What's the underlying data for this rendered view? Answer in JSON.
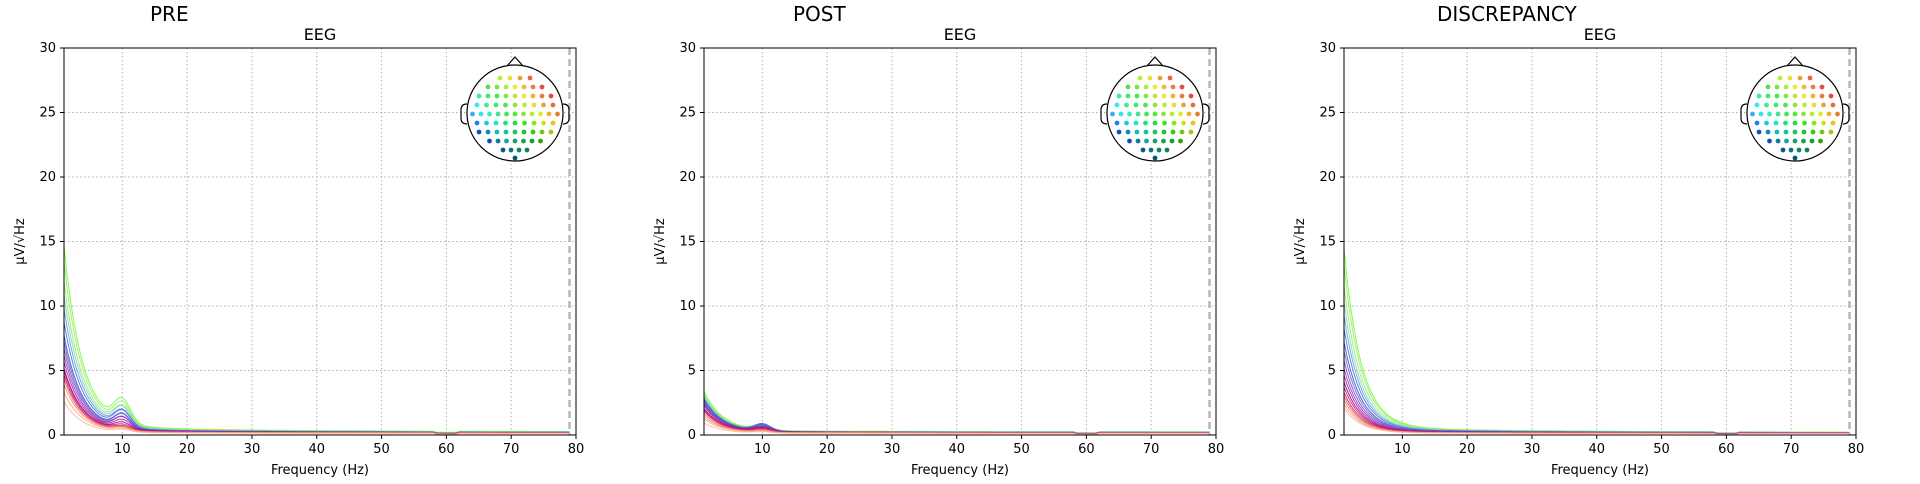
{
  "chart_data": [
    {
      "type": "line",
      "title": "PRE",
      "subtitle": "EEG",
      "xlabel": "Frequency (Hz)",
      "ylabel": "µV/√Hz",
      "xlim": [
        1,
        80
      ],
      "ylim": [
        0,
        30
      ],
      "xticks": [
        10,
        20,
        30,
        40,
        50,
        60,
        70,
        80
      ],
      "yticks": [
        0,
        5,
        10,
        15,
        20,
        25,
        30
      ],
      "grid": true,
      "vline_x": 79,
      "inset": "sensor topomap, top-right",
      "line_colors": [
        "#66ff33",
        "#8cf05a",
        "#a6e070",
        "#7ad6c0",
        "#5a9de0",
        "#4169e1",
        "#3050c0",
        "#6a5acd",
        "#7b3fbf",
        "#9932cc",
        "#a0208f",
        "#8b008b",
        "#c71585",
        "#dc143c",
        "#e06060",
        "#f08070",
        "#f4a080",
        "#ffb090",
        "#2e8b57",
        "#20b2aa"
      ],
      "series": [
        {
          "label_peak": 14.2,
          "alpha": 10,
          "end": 0.25
        },
        {
          "label_peak": 13.0,
          "alpha": 9,
          "end": 0.22
        },
        {
          "label_peak": 11.5,
          "alpha": 8,
          "end": 0.22
        },
        {
          "label_peak": 10.5,
          "alpha": 8,
          "end": 0.2
        },
        {
          "label_peak": 9.5,
          "alpha": 7,
          "end": 0.2
        },
        {
          "label_peak": 8.5,
          "alpha": 7,
          "end": 0.2
        },
        {
          "label_peak": 7.5,
          "alpha": 6,
          "end": 0.18
        },
        {
          "label_peak": 7.0,
          "alpha": 6,
          "end": 0.18
        },
        {
          "label_peak": 6.5,
          "alpha": 5,
          "end": 0.18
        },
        {
          "label_peak": 6.0,
          "alpha": 5,
          "end": 0.18
        },
        {
          "label_peak": 5.5,
          "alpha": 4,
          "end": 0.18
        },
        {
          "label_peak": 5.0,
          "alpha": 3,
          "end": 0.18
        },
        {
          "label_peak": 4.8,
          "alpha": 2.2,
          "end": 0.18
        },
        {
          "label_peak": 4.5,
          "alpha": 1.8,
          "end": 0.15
        },
        {
          "label_peak": 4.2,
          "alpha": 1.6,
          "end": 0.15
        },
        {
          "label_peak": 3.8,
          "alpha": 1.5,
          "end": 0.15
        },
        {
          "label_peak": 3.2,
          "alpha": 1.2,
          "end": 0.15
        },
        {
          "label_peak": 2.5,
          "alpha": 1.0,
          "end": 0.12
        }
      ]
    },
    {
      "type": "line",
      "title": "POST",
      "subtitle": "EEG",
      "xlabel": "Frequency (Hz)",
      "ylabel": "µV/√Hz",
      "xlim": [
        1,
        80
      ],
      "ylim": [
        0,
        30
      ],
      "xticks": [
        10,
        20,
        30,
        40,
        50,
        60,
        70,
        80
      ],
      "yticks": [
        0,
        5,
        10,
        15,
        20,
        25,
        30
      ],
      "grid": true,
      "vline_x": 79,
      "inset": "sensor topomap, top-right",
      "line_colors": [
        "#66ff33",
        "#8cf05a",
        "#a6e070",
        "#7ad6c0",
        "#5a9de0",
        "#4169e1",
        "#3050c0",
        "#6a5acd",
        "#7b3fbf",
        "#9932cc",
        "#a0208f",
        "#8b008b",
        "#c71585",
        "#dc143c",
        "#e06060",
        "#f08070",
        "#f4a080",
        "#ffb090",
        "#2e8b57",
        "#20b2aa"
      ],
      "series": [
        {
          "label_peak": 3.3,
          "alpha": 2.0,
          "end": 0.25
        },
        {
          "label_peak": 3.1,
          "alpha": 2.2,
          "end": 0.22
        },
        {
          "label_peak": 3.0,
          "alpha": 2.4,
          "end": 0.22
        },
        {
          "label_peak": 2.9,
          "alpha": 2.5,
          "end": 0.2
        },
        {
          "label_peak": 2.8,
          "alpha": 2.8,
          "end": 0.2
        },
        {
          "label_peak": 2.7,
          "alpha": 3.0,
          "end": 0.2
        },
        {
          "label_peak": 2.6,
          "alpha": 2.6,
          "end": 0.18
        },
        {
          "label_peak": 2.5,
          "alpha": 2.2,
          "end": 0.18
        },
        {
          "label_peak": 2.4,
          "alpha": 2.0,
          "end": 0.18
        },
        {
          "label_peak": 2.3,
          "alpha": 1.8,
          "end": 0.18
        },
        {
          "label_peak": 2.2,
          "alpha": 1.7,
          "end": 0.18
        },
        {
          "label_peak": 2.0,
          "alpha": 1.6,
          "end": 0.18
        },
        {
          "label_peak": 1.9,
          "alpha": 1.4,
          "end": 0.18
        },
        {
          "label_peak": 1.8,
          "alpha": 1.2,
          "end": 0.15
        },
        {
          "label_peak": 1.6,
          "alpha": 1.0,
          "end": 0.15
        },
        {
          "label_peak": 1.4,
          "alpha": 0.8,
          "end": 0.15
        },
        {
          "label_peak": 1.2,
          "alpha": 0.6,
          "end": 0.15
        },
        {
          "label_peak": 0.9,
          "alpha": 0.5,
          "end": 0.12
        }
      ]
    },
    {
      "type": "line",
      "title": "DISCREPANCY",
      "subtitle": "EEG",
      "xlabel": "Frequency (Hz)",
      "ylabel": "µV/√Hz",
      "xlim": [
        1,
        80
      ],
      "ylim": [
        0,
        30
      ],
      "xticks": [
        10,
        20,
        30,
        40,
        50,
        60,
        70,
        80
      ],
      "yticks": [
        0,
        5,
        10,
        15,
        20,
        25,
        30
      ],
      "grid": true,
      "vline_x": 79,
      "inset": "sensor topomap, top-right",
      "line_colors": [
        "#66ff33",
        "#8cf05a",
        "#a6e070",
        "#7ad6c0",
        "#5a9de0",
        "#4169e1",
        "#3050c0",
        "#6a5acd",
        "#7b3fbf",
        "#9932cc",
        "#a0208f",
        "#8b008b",
        "#c71585",
        "#dc143c",
        "#e06060",
        "#f08070",
        "#f4a080",
        "#ffb090",
        "#2e8b57",
        "#20b2aa"
      ],
      "series": [
        {
          "label_peak": 14.0,
          "alpha": 0,
          "end": 0.2
        },
        {
          "label_peak": 12.8,
          "alpha": 0,
          "end": 0.2
        },
        {
          "label_peak": 11.2,
          "alpha": 0,
          "end": 0.2
        },
        {
          "label_peak": 10.0,
          "alpha": 0,
          "end": 0.18
        },
        {
          "label_peak": 9.0,
          "alpha": 0,
          "end": 0.18
        },
        {
          "label_peak": 8.0,
          "alpha": 0,
          "end": 0.18
        },
        {
          "label_peak": 7.0,
          "alpha": 0,
          "end": 0.16
        },
        {
          "label_peak": 6.3,
          "alpha": 0,
          "end": 0.16
        },
        {
          "label_peak": 5.6,
          "alpha": 0,
          "end": 0.16
        },
        {
          "label_peak": 5.0,
          "alpha": 0,
          "end": 0.16
        },
        {
          "label_peak": 4.5,
          "alpha": 0,
          "end": 0.15
        },
        {
          "label_peak": 4.0,
          "alpha": 0,
          "end": 0.15
        },
        {
          "label_peak": 3.6,
          "alpha": 0,
          "end": 0.15
        },
        {
          "label_peak": 3.2,
          "alpha": 0,
          "end": 0.14
        },
        {
          "label_peak": 2.9,
          "alpha": 0,
          "end": 0.14
        },
        {
          "label_peak": 2.6,
          "alpha": 0,
          "end": 0.13
        },
        {
          "label_peak": 2.3,
          "alpha": 0,
          "end": 0.12
        },
        {
          "label_peak": 2.0,
          "alpha": 0,
          "end": 0.12
        }
      ]
    }
  ]
}
